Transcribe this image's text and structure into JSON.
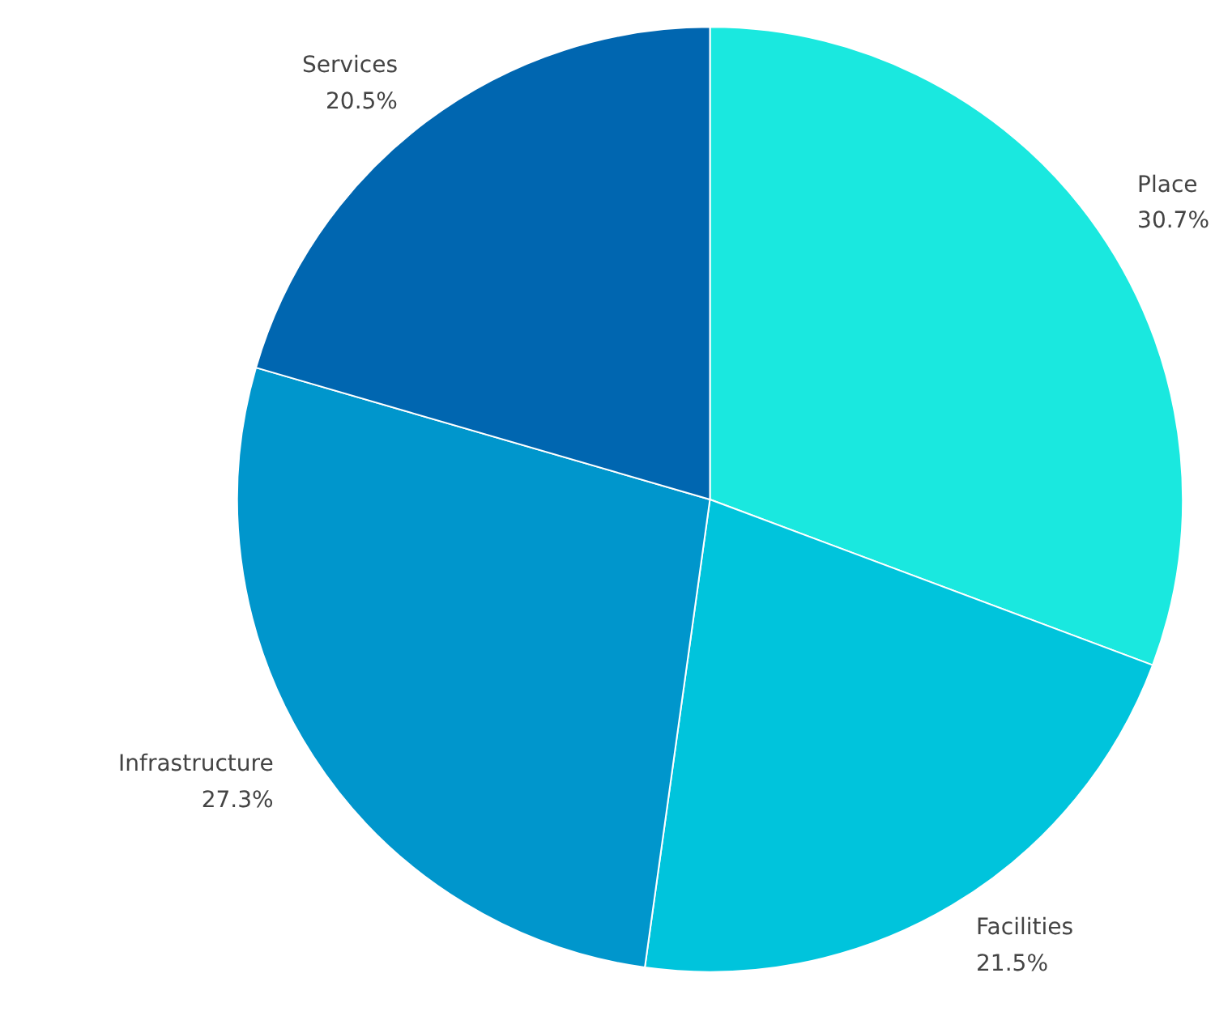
{
  "chart_data": {
    "type": "pie",
    "categories": [
      "Place",
      "Facilities",
      "Infrastructure",
      "Services"
    ],
    "values": [
      30.7,
      21.5,
      27.3,
      20.5
    ],
    "colors": [
      "#1ae8df",
      "#00c4dc",
      "#0096cc",
      "#0066b0"
    ],
    "value_labels": [
      "30.7%",
      "21.5%",
      "27.3%",
      "20.5%"
    ],
    "legend": false
  }
}
